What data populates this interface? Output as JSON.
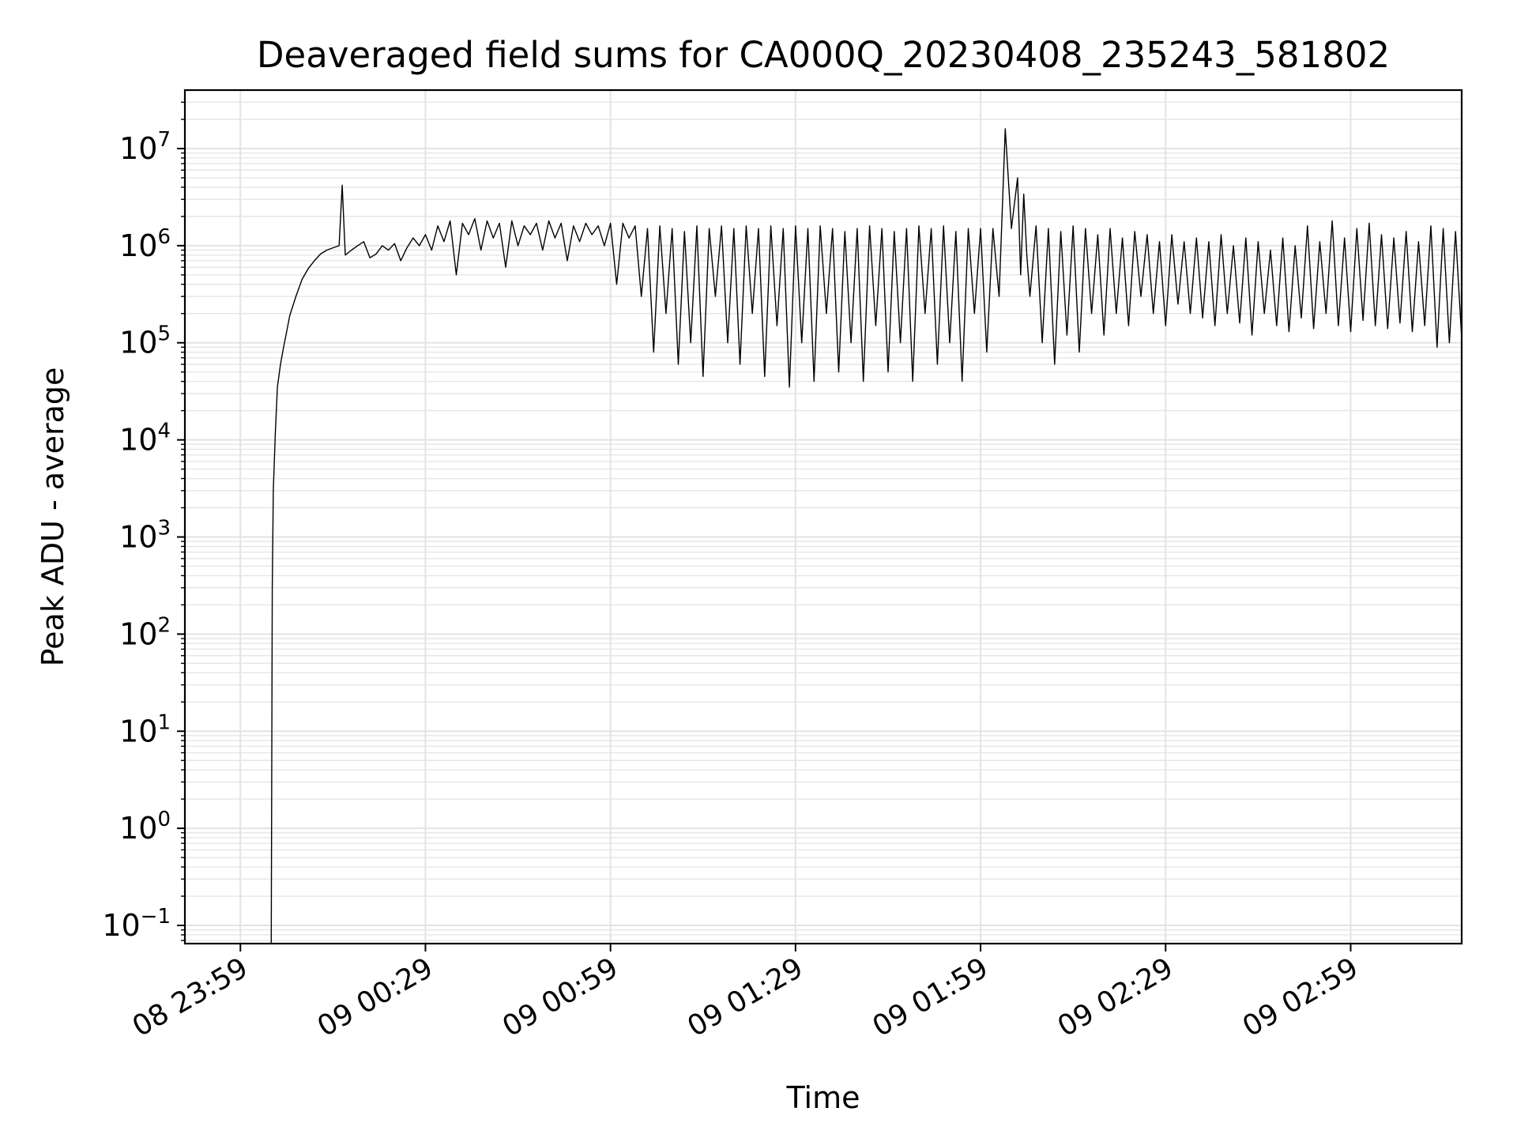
{
  "chart_data": {
    "type": "line",
    "title": "Deaveraged field sums for CA000Q_20230408_235243_581802",
    "xlabel": "Time",
    "ylabel": "Peak ADU - average",
    "yscale": "log",
    "ylim": [
      0.065,
      40000000
    ],
    "xlim": [
      "2023-04-08 23:50",
      "2023-04-09 03:17"
    ],
    "grid": "on",
    "legend": "none",
    "line_color": "#000000",
    "x_ticks": [
      {
        "label": "08 23:59",
        "value": "2023-04-08 23:59"
      },
      {
        "label": "09 00:29",
        "value": "2023-04-09 00:29"
      },
      {
        "label": "09 00:59",
        "value": "2023-04-09 00:59"
      },
      {
        "label": "09 01:29",
        "value": "2023-04-09 01:29"
      },
      {
        "label": "09 01:59",
        "value": "2023-04-09 01:59"
      },
      {
        "label": "09 02:29",
        "value": "2023-04-09 02:29"
      },
      {
        "label": "09 02:59",
        "value": "2023-04-09 02:59"
      }
    ],
    "y_ticks": [
      {
        "base": "10",
        "exp": "−1",
        "value": 0.1
      },
      {
        "base": "10",
        "exp": "0",
        "value": 1
      },
      {
        "base": "10",
        "exp": "1",
        "value": 10
      },
      {
        "base": "10",
        "exp": "2",
        "value": 100
      },
      {
        "base": "10",
        "exp": "3",
        "value": 1000
      },
      {
        "base": "10",
        "exp": "4",
        "value": 10000
      },
      {
        "base": "10",
        "exp": "5",
        "value": 100000
      },
      {
        "base": "10",
        "exp": "6",
        "value": 1000000
      },
      {
        "base": "10",
        "exp": "7",
        "value": 10000000
      }
    ],
    "series": [
      {
        "x": [
          "2023-04-09 00:04",
          "2023-04-09 00:04:10",
          "2023-04-09 00:04:20",
          "2023-04-09 00:04:40",
          "2023-04-09 00:05",
          "2023-04-09 00:05:30",
          "2023-04-09 00:06",
          "2023-04-09 00:06:30",
          "2023-04-09 00:07",
          "2023-04-09 00:08",
          "2023-04-09 00:09",
          "2023-04-09 00:10",
          "2023-04-09 00:11",
          "2023-04-09 00:12",
          "2023-04-09 00:13",
          "2023-04-09 00:14",
          "2023-04-09 00:15",
          "2023-04-09 00:15:30",
          "2023-04-09 00:16",
          "2023-04-09 00:17",
          "2023-04-09 00:18",
          "2023-04-09 00:19",
          "2023-04-09 00:20",
          "2023-04-09 00:21",
          "2023-04-09 00:22",
          "2023-04-09 00:23",
          "2023-04-09 00:24",
          "2023-04-09 00:25",
          "2023-04-09 00:26",
          "2023-04-09 00:27",
          "2023-04-09 00:28",
          "2023-04-09 00:29",
          "2023-04-09 00:30",
          "2023-04-09 00:31",
          "2023-04-09 00:32",
          "2023-04-09 00:33",
          "2023-04-09 00:34",
          "2023-04-09 00:35",
          "2023-04-09 00:36",
          "2023-04-09 00:37",
          "2023-04-09 00:38",
          "2023-04-09 00:39",
          "2023-04-09 00:40",
          "2023-04-09 00:41",
          "2023-04-09 00:42",
          "2023-04-09 00:43",
          "2023-04-09 00:44",
          "2023-04-09 00:45",
          "2023-04-09 00:46",
          "2023-04-09 00:47",
          "2023-04-09 00:48",
          "2023-04-09 00:49",
          "2023-04-09 00:50",
          "2023-04-09 00:51",
          "2023-04-09 00:52",
          "2023-04-09 00:53",
          "2023-04-09 00:54",
          "2023-04-09 00:55",
          "2023-04-09 00:56",
          "2023-04-09 00:57",
          "2023-04-09 00:58",
          "2023-04-09 00:59",
          "2023-04-09 01:00",
          "2023-04-09 01:01",
          "2023-04-09 01:02",
          "2023-04-09 01:03",
          "2023-04-09 01:04",
          "2023-04-09 01:05",
          "2023-04-09 01:06",
          "2023-04-09 01:07",
          "2023-04-09 01:08",
          "2023-04-09 01:09",
          "2023-04-09 01:10",
          "2023-04-09 01:11",
          "2023-04-09 01:12",
          "2023-04-09 01:13",
          "2023-04-09 01:14",
          "2023-04-09 01:15",
          "2023-04-09 01:16",
          "2023-04-09 01:17",
          "2023-04-09 01:18",
          "2023-04-09 01:19",
          "2023-04-09 01:20",
          "2023-04-09 01:21",
          "2023-04-09 01:22",
          "2023-04-09 01:23",
          "2023-04-09 01:24",
          "2023-04-09 01:25",
          "2023-04-09 01:26",
          "2023-04-09 01:27",
          "2023-04-09 01:28",
          "2023-04-09 01:29",
          "2023-04-09 01:30",
          "2023-04-09 01:31",
          "2023-04-09 01:32",
          "2023-04-09 01:33",
          "2023-04-09 01:34",
          "2023-04-09 01:35",
          "2023-04-09 01:36",
          "2023-04-09 01:37",
          "2023-04-09 01:38",
          "2023-04-09 01:39",
          "2023-04-09 01:40",
          "2023-04-09 01:41",
          "2023-04-09 01:42",
          "2023-04-09 01:43",
          "2023-04-09 01:44",
          "2023-04-09 01:45",
          "2023-04-09 01:46",
          "2023-04-09 01:47",
          "2023-04-09 01:48",
          "2023-04-09 01:49",
          "2023-04-09 01:50",
          "2023-04-09 01:51",
          "2023-04-09 01:52",
          "2023-04-09 01:53",
          "2023-04-09 01:54",
          "2023-04-09 01:55",
          "2023-04-09 01:56",
          "2023-04-09 01:57",
          "2023-04-09 01:58",
          "2023-04-09 01:59",
          "2023-04-09 02:00",
          "2023-04-09 02:01",
          "2023-04-09 02:02",
          "2023-04-09 02:03",
          "2023-04-09 02:04",
          "2023-04-09 02:05",
          "2023-04-09 02:05:30",
          "2023-04-09 02:06",
          "2023-04-09 02:06:30",
          "2023-04-09 02:07",
          "2023-04-09 02:08",
          "2023-04-09 02:09",
          "2023-04-09 02:10",
          "2023-04-09 02:11",
          "2023-04-09 02:12",
          "2023-04-09 02:13",
          "2023-04-09 02:14",
          "2023-04-09 02:15",
          "2023-04-09 02:16",
          "2023-04-09 02:17",
          "2023-04-09 02:18",
          "2023-04-09 02:19",
          "2023-04-09 02:20",
          "2023-04-09 02:21",
          "2023-04-09 02:22",
          "2023-04-09 02:23",
          "2023-04-09 02:24",
          "2023-04-09 02:25",
          "2023-04-09 02:26",
          "2023-04-09 02:27",
          "2023-04-09 02:28",
          "2023-04-09 02:29",
          "2023-04-09 02:30",
          "2023-04-09 02:31",
          "2023-04-09 02:32",
          "2023-04-09 02:33",
          "2023-04-09 02:34",
          "2023-04-09 02:35",
          "2023-04-09 02:36",
          "2023-04-09 02:37",
          "2023-04-09 02:38",
          "2023-04-09 02:39",
          "2023-04-09 02:40",
          "2023-04-09 02:41",
          "2023-04-09 02:42",
          "2023-04-09 02:43",
          "2023-04-09 02:44",
          "2023-04-09 02:45",
          "2023-04-09 02:46",
          "2023-04-09 02:47",
          "2023-04-09 02:48",
          "2023-04-09 02:49",
          "2023-04-09 02:50",
          "2023-04-09 02:51",
          "2023-04-09 02:52",
          "2023-04-09 02:53",
          "2023-04-09 02:54",
          "2023-04-09 02:55",
          "2023-04-09 02:56",
          "2023-04-09 02:57",
          "2023-04-09 02:58",
          "2023-04-09 02:59",
          "2023-04-09 03:00",
          "2023-04-09 03:01",
          "2023-04-09 03:02",
          "2023-04-09 03:03",
          "2023-04-09 03:04",
          "2023-04-09 03:05",
          "2023-04-09 03:06",
          "2023-04-09 03:07",
          "2023-04-09 03:08",
          "2023-04-09 03:09",
          "2023-04-09 03:10",
          "2023-04-09 03:11",
          "2023-04-09 03:12",
          "2023-04-09 03:13",
          "2023-04-09 03:14",
          "2023-04-09 03:15",
          "2023-04-09 03:16",
          "2023-04-09 03:17"
        ],
        "y": [
          0.065,
          300,
          3000,
          12000,
          35000,
          60000,
          90000,
          130000,
          190000,
          300000,
          450000,
          580000,
          700000,
          820000,
          900000,
          950000,
          1000000,
          4200000,
          800000,
          900000,
          1000000,
          1100000,
          750000,
          820000,
          1000000,
          900000,
          1050000,
          700000,
          950000,
          1200000,
          1000000,
          1300000,
          900000,
          1600000,
          1100000,
          1800000,
          500000,
          1700000,
          1300000,
          1900000,
          900000,
          1800000,
          1200000,
          1700000,
          600000,
          1800000,
          1000000,
          1600000,
          1300000,
          1700000,
          900000,
          1800000,
          1200000,
          1700000,
          700000,
          1600000,
          1100000,
          1700000,
          1300000,
          1600000,
          1000000,
          1700000,
          400000,
          1700000,
          1200000,
          1600000,
          300000,
          1500000,
          80000,
          1600000,
          200000,
          1500000,
          60000,
          1400000,
          100000,
          1600000,
          45000,
          1500000,
          300000,
          1600000,
          100000,
          1500000,
          60000,
          1600000,
          200000,
          1500000,
          45000,
          1600000,
          150000,
          1500000,
          35000,
          1600000,
          100000,
          1500000,
          40000,
          1600000,
          200000,
          1500000,
          50000,
          1400000,
          100000,
          1500000,
          40000,
          1600000,
          150000,
          1500000,
          50000,
          1400000,
          100000,
          1500000,
          40000,
          1600000,
          200000,
          1500000,
          60000,
          1600000,
          100000,
          1400000,
          40000,
          1500000,
          200000,
          1500000,
          80000,
          1500000,
          300000,
          16000000,
          1500000,
          5000000,
          500000,
          3400000,
          800000,
          300000,
          1600000,
          100000,
          1500000,
          60000,
          1400000,
          120000,
          1600000,
          80000,
          1500000,
          200000,
          1300000,
          120000,
          1500000,
          200000,
          1200000,
          150000,
          1400000,
          300000,
          1300000,
          200000,
          1100000,
          150000,
          1300000,
          250000,
          1100000,
          200000,
          1200000,
          180000,
          1100000,
          150000,
          1300000,
          200000,
          1000000,
          160000,
          1200000,
          120000,
          1100000,
          200000,
          900000,
          150000,
          1200000,
          130000,
          1000000,
          180000,
          1600000,
          140000,
          1100000,
          200000,
          1800000,
          150000,
          1200000,
          130000,
          1500000,
          170000,
          1700000,
          150000,
          1300000,
          140000,
          1200000,
          160000,
          1400000,
          130000,
          1100000,
          150000,
          1600000,
          90000,
          1500000,
          100000,
          1400000,
          110000
        ]
      }
    ]
  }
}
